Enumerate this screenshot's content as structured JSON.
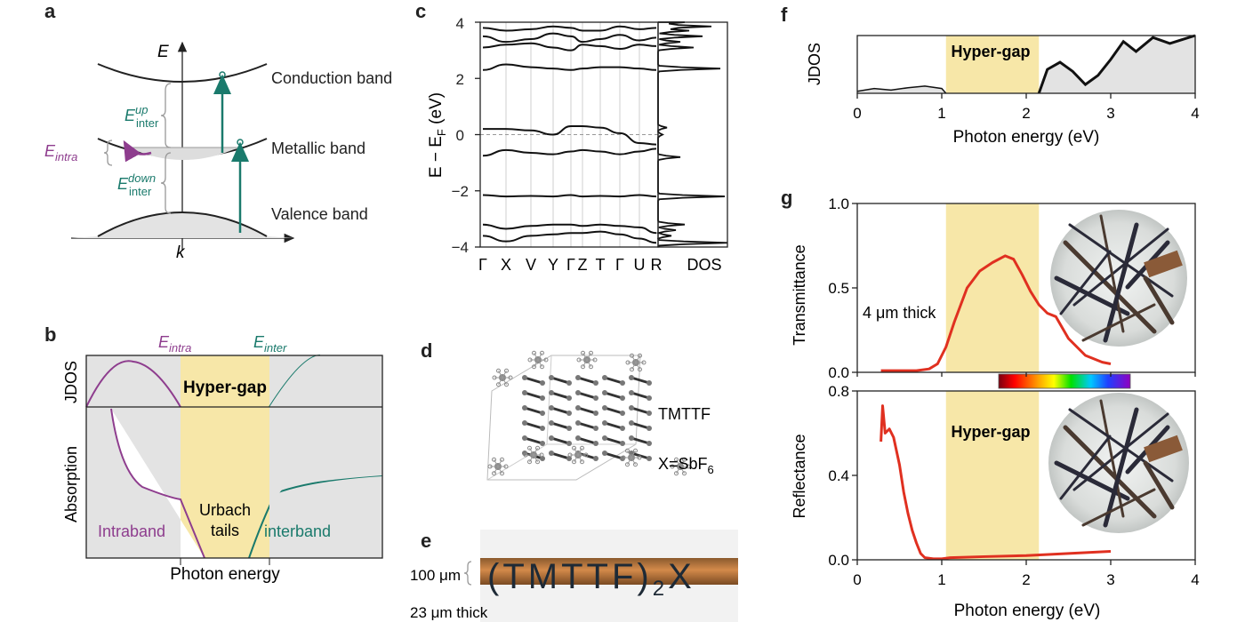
{
  "figure": {
    "panels": {
      "a": {
        "label": "a",
        "axis_e": "E",
        "axis_k": "k",
        "bands": [
          "Conduction band",
          "Metallic band",
          "Valence band"
        ],
        "e_intra": "E",
        "e_intra_sub": "intra",
        "e_up": "E",
        "e_up_sup": "up",
        "e_up_sub": "inter",
        "e_down": "E",
        "e_down_sup": "down",
        "e_down_sub": "inter"
      },
      "b": {
        "label": "b",
        "e_intra": "E",
        "e_intra_sub": "intra",
        "e_inter": "E",
        "e_inter_sub": "inter",
        "ylabel_top": "JDOS",
        "ylabel_bottom": "Absorption",
        "hypergap": "Hyper-gap",
        "intraband": "Intraband",
        "urbach1": "Urbach",
        "urbach2": "tails",
        "interband": "interband",
        "xlabel": "Photon energy"
      },
      "c": {
        "label": "c",
        "ylabel": "E − E",
        "ylabel_sub": "F",
        "ylabel_unit": " (eV)",
        "yticks": [
          "4",
          "2",
          "0",
          "−2",
          "−4"
        ],
        "kpoints": [
          "Γ",
          "X",
          "V",
          "Y",
          "Γ",
          "Z",
          "T",
          "Γ",
          "U",
          "R"
        ],
        "dos": "DOS"
      },
      "d": {
        "label": "d",
        "mol": "TMTTF",
        "x_label": "X=SbF",
        "x_sub": "6"
      },
      "e": {
        "label": "e",
        "width_text": "100 μm",
        "thick_text": "23 μm thick",
        "formula": "(TMTTF)",
        "formula_sub": "2",
        "formula_x": "X"
      },
      "f": {
        "label": "f",
        "ylabel": "JDOS",
        "xlabel": "Photon energy (eV)",
        "xticks": [
          "0",
          "1",
          "2",
          "3",
          "4"
        ],
        "hypergap": "Hyper-gap"
      },
      "g": {
        "label": "g",
        "ylabel_top": "Transmittance",
        "ylabel_bottom": "Reflectance",
        "yticks_top": [
          "1.0",
          "0.5",
          "0.0"
        ],
        "yticks_bottom": [
          "0.8",
          "0.4",
          "0.0"
        ],
        "xticks": [
          "0",
          "1",
          "2",
          "3",
          "4"
        ],
        "xlabel": "Photon energy (eV)",
        "thick_note": "4 μm thick",
        "hypergap": "Hyper-gap"
      }
    },
    "colors": {
      "intra": "#8e3d8e",
      "inter": "#1a7a6c",
      "hypergap": "#f7e7a8",
      "curve": "#e03020",
      "fill_gray": "#e3e3e3"
    }
  },
  "chart_data": [
    {
      "type": "line",
      "panel": "f",
      "xlabel": "Photon energy (eV)",
      "ylabel": "JDOS",
      "xlim": [
        0,
        4
      ],
      "hypergap_range": [
        1.05,
        2.15
      ],
      "x": [
        0,
        0.2,
        0.4,
        0.6,
        0.8,
        1.0,
        1.05,
        2.15,
        2.25,
        2.4,
        2.55,
        2.7,
        2.85,
        3.0,
        3.15,
        3.3,
        3.5,
        3.7,
        3.85,
        4.0
      ],
      "y": [
        0.05,
        0.12,
        0.08,
        0.14,
        0.18,
        0.12,
        0,
        0,
        0.6,
        0.78,
        0.55,
        0.22,
        0.45,
        0.85,
        1.3,
        1.05,
        1.4,
        1.25,
        1.35,
        1.45
      ]
    },
    {
      "type": "line",
      "panel": "g-top",
      "xlabel": "Photon energy (eV)",
      "ylabel": "Transmittance",
      "xlim": [
        0,
        4
      ],
      "ylim": [
        0,
        1.0
      ],
      "hypergap_range": [
        1.05,
        2.15
      ],
      "x": [
        0.28,
        0.5,
        0.7,
        0.85,
        0.95,
        1.05,
        1.15,
        1.3,
        1.45,
        1.6,
        1.75,
        1.85,
        1.95,
        2.05,
        2.15,
        2.25,
        2.35,
        2.5,
        2.7,
        2.9,
        3.0
      ],
      "y": [
        0.01,
        0.01,
        0.01,
        0.02,
        0.05,
        0.15,
        0.3,
        0.5,
        0.6,
        0.65,
        0.69,
        0.67,
        0.58,
        0.48,
        0.4,
        0.35,
        0.33,
        0.2,
        0.1,
        0.06,
        0.05
      ]
    },
    {
      "type": "line",
      "panel": "g-bottom",
      "xlabel": "Photon energy (eV)",
      "ylabel": "Reflectance",
      "xlim": [
        0,
        4
      ],
      "ylim": [
        0,
        0.8
      ],
      "hypergap_range": [
        1.05,
        2.15
      ],
      "x": [
        0.28,
        0.3,
        0.33,
        0.38,
        0.43,
        0.5,
        0.55,
        0.6,
        0.65,
        0.7,
        0.75,
        0.8,
        0.9,
        1.0,
        1.1,
        1.5,
        2.0,
        2.5,
        3.0
      ],
      "y": [
        0.56,
        0.73,
        0.6,
        0.62,
        0.58,
        0.45,
        0.32,
        0.22,
        0.14,
        0.08,
        0.03,
        0.01,
        0.005,
        0.005,
        0.01,
        0.015,
        0.02,
        0.03,
        0.04
      ]
    }
  ]
}
